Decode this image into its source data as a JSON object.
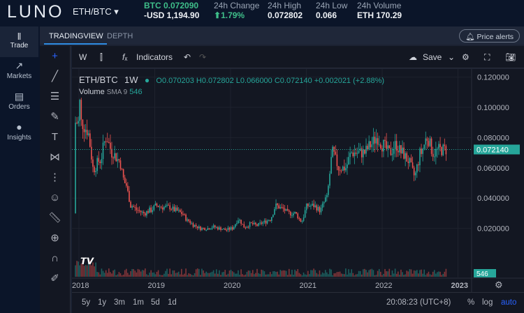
{
  "header": {
    "logo": "LUNO",
    "pair": "ETH/BTC",
    "price": "BTC 0.072090",
    "price_usd": "-USD 1,194.90",
    "change_label": "24h Change",
    "change_value": "1.79%",
    "high_label": "24h High",
    "high_value": "0.072802",
    "low_label": "24h Low",
    "low_value": "0.066",
    "volume_label": "24h Volume",
    "volume_value": "ETH 170.29"
  },
  "sidebar": {
    "items": [
      {
        "label": "Trade",
        "icon": "candles-icon"
      },
      {
        "label": "Markets",
        "icon": "trend-icon"
      },
      {
        "label": "Orders",
        "icon": "list-icon"
      },
      {
        "label": "Insights",
        "icon": "bulb-icon"
      }
    ]
  },
  "tabs": {
    "tradingview": "TRADINGVIEW",
    "depth": "DEPTH",
    "price_alerts": "Price alerts"
  },
  "toolbar": {
    "interval": "W",
    "indicators": "Indicators",
    "save": "Save"
  },
  "legend": {
    "symbol": "ETH/BTC",
    "interval": "1W",
    "o": "O0.070203",
    "h": "H0.072802",
    "l": "L0.066000",
    "c": "C0.072140",
    "chg": "+0.002021 (+2.88%)",
    "volume": "Volume",
    "sma": "SMA 9",
    "vol_value": "546"
  },
  "bottom": {
    "ranges": [
      "5y",
      "1y",
      "3m",
      "1m",
      "5d",
      "1d"
    ],
    "time": "20:08:23 (UTC+8)",
    "pct": "%",
    "log": "log",
    "auto": "auto"
  },
  "colors": {
    "up": "#26a69a",
    "down": "#ef5350",
    "accent": "#2962ff",
    "bg": "#131722"
  },
  "chart_data": {
    "type": "candlestick",
    "price_ticks": [
      "0.120000",
      "0.100000",
      "0.080000",
      "0.060000",
      "0.040000",
      "0.020000"
    ],
    "time_ticks": [
      "2018",
      "2019",
      "2020",
      "2021",
      "2022",
      "2023"
    ],
    "last_price": "0.072140",
    "ylim": [
      0,
      0.13
    ],
    "monthly_close": [
      0.09,
      0.085,
      0.06,
      0.065,
      0.08,
      0.07,
      0.065,
      0.05,
      0.035,
      0.032,
      0.03,
      0.032,
      0.035,
      0.034,
      0.034,
      0.032,
      0.03,
      0.025,
      0.022,
      0.02,
      0.02,
      0.021,
      0.02,
      0.019,
      0.02,
      0.026,
      0.021,
      0.023,
      0.022,
      0.024,
      0.026,
      0.035,
      0.033,
      0.03,
      0.03,
      0.025,
      0.035,
      0.035,
      0.032,
      0.04,
      0.07,
      0.06,
      0.06,
      0.07,
      0.07,
      0.07,
      0.075,
      0.08,
      0.075,
      0.07,
      0.075,
      0.07,
      0.065,
      0.055,
      0.07,
      0.08,
      0.07,
      0.072,
      0.07214
    ]
  }
}
